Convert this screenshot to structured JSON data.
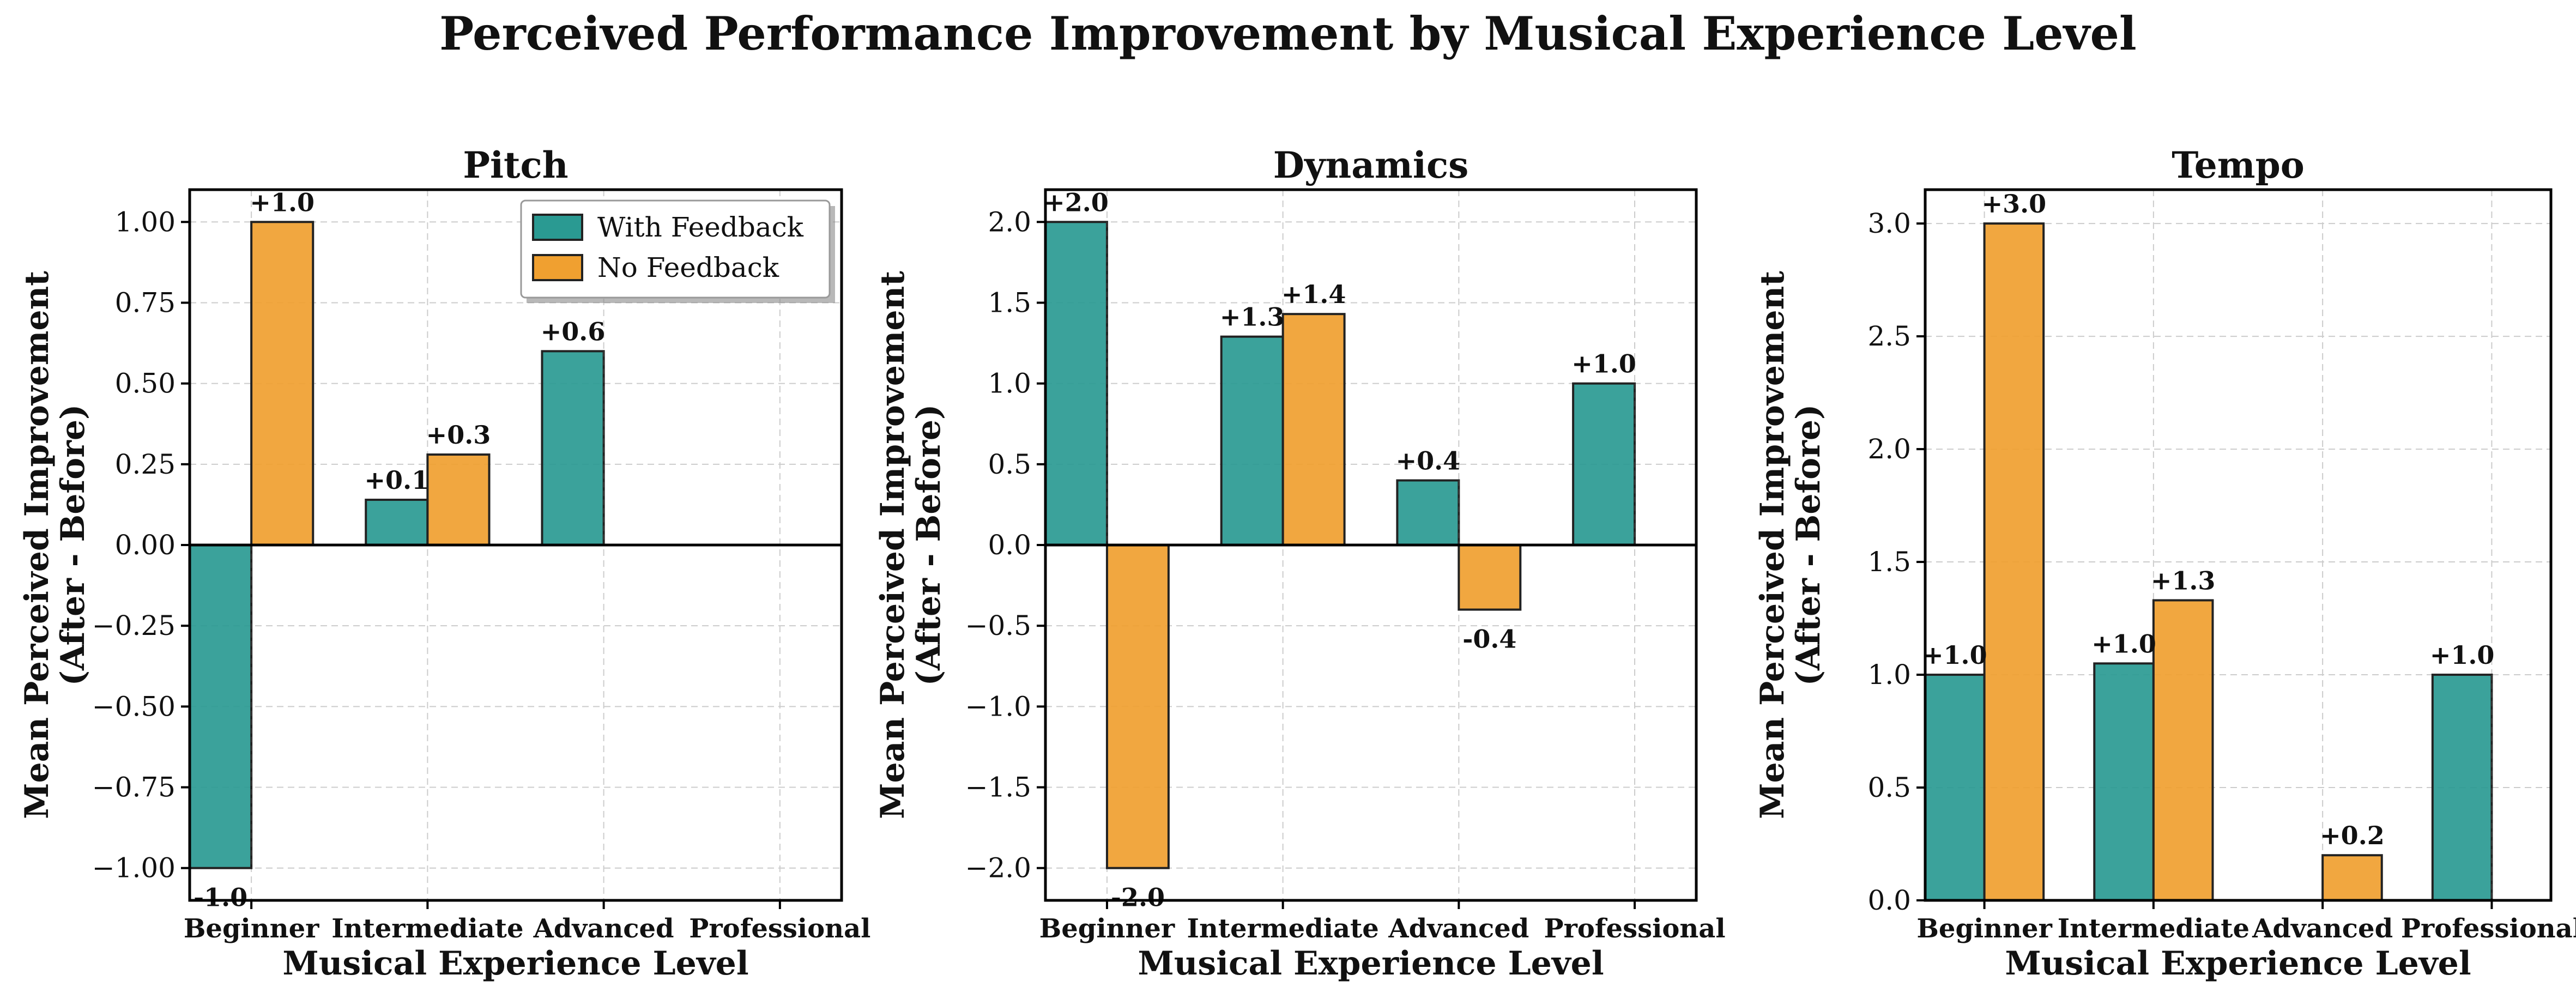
{
  "figure": {
    "title": "Perceived Performance Improvement by Musical Experience Level"
  },
  "colors": {
    "with_feedback": "#2a9a92",
    "no_feedback": "#f0a030"
  },
  "chart_data": [
    {
      "type": "bar",
      "title": "Pitch",
      "xlabel": "Musical Experience Level",
      "ylabel": [
        "Mean Perceived Improvement",
        "(After - Before)"
      ],
      "categories": [
        "Beginner",
        "Intermediate",
        "Advanced",
        "Professional"
      ],
      "series": [
        {
          "name": "With Feedback",
          "values": [
            -1.0,
            0.14,
            0.6,
            0.0
          ],
          "labels": [
            "-1.0",
            "+0.1",
            "+0.6",
            ""
          ]
        },
        {
          "name": "No Feedback",
          "values": [
            1.0,
            0.28,
            0.0,
            0.0
          ],
          "labels": [
            "+1.0",
            "+0.3",
            "",
            ""
          ]
        }
      ],
      "ylim": [
        -1.1,
        1.1
      ],
      "yticks": [
        -1.0,
        -0.75,
        -0.5,
        -0.25,
        0.0,
        0.25,
        0.5,
        0.75,
        1.0
      ],
      "ytick_labels": [
        "−1.00",
        "−0.75",
        "−0.50",
        "−0.25",
        "0.00",
        "0.25",
        "0.50",
        "0.75",
        "1.00"
      ],
      "grid": true,
      "legend": "top-right"
    },
    {
      "type": "bar",
      "title": "Dynamics",
      "xlabel": "Musical Experience Level",
      "ylabel": [
        "Mean Perceived Improvement",
        "(After - Before)"
      ],
      "categories": [
        "Beginner",
        "Intermediate",
        "Advanced",
        "Professional"
      ],
      "series": [
        {
          "name": "With Feedback",
          "values": [
            2.0,
            1.29,
            0.4,
            1.0
          ],
          "labels": [
            "+2.0",
            "+1.3",
            "+0.4",
            "+1.0"
          ]
        },
        {
          "name": "No Feedback",
          "values": [
            -2.0,
            1.43,
            -0.4,
            0.0
          ],
          "labels": [
            "-2.0",
            "+1.4",
            "-0.4",
            ""
          ]
        }
      ],
      "ylim": [
        -2.2,
        2.2
      ],
      "yticks": [
        -2.0,
        -1.5,
        -1.0,
        -0.5,
        0.0,
        0.5,
        1.0,
        1.5,
        2.0
      ],
      "ytick_labels": [
        "−2.0",
        "−1.5",
        "−1.0",
        "−0.5",
        "0.0",
        "0.5",
        "1.0",
        "1.5",
        "2.0"
      ],
      "grid": true
    },
    {
      "type": "bar",
      "title": "Tempo",
      "xlabel": "Musical Experience Level",
      "ylabel": [
        "Mean Perceived Improvement",
        "(After - Before)"
      ],
      "categories": [
        "Beginner",
        "Intermediate",
        "Advanced",
        "Professional"
      ],
      "series": [
        {
          "name": "With Feedback",
          "values": [
            1.0,
            1.05,
            0.0,
            1.0
          ],
          "labels": [
            "+1.0",
            "+1.0",
            "",
            "+1.0"
          ]
        },
        {
          "name": "No Feedback",
          "values": [
            3.0,
            1.33,
            0.2,
            0.0
          ],
          "labels": [
            "+3.0",
            "+1.3",
            "+0.2",
            ""
          ]
        }
      ],
      "ylim": [
        0,
        3.15
      ],
      "yticks": [
        0.0,
        0.5,
        1.0,
        1.5,
        2.0,
        2.5,
        3.0
      ],
      "ytick_labels": [
        "0.0",
        "0.5",
        "1.0",
        "1.5",
        "2.0",
        "2.5",
        "3.0"
      ],
      "grid": true
    }
  ]
}
